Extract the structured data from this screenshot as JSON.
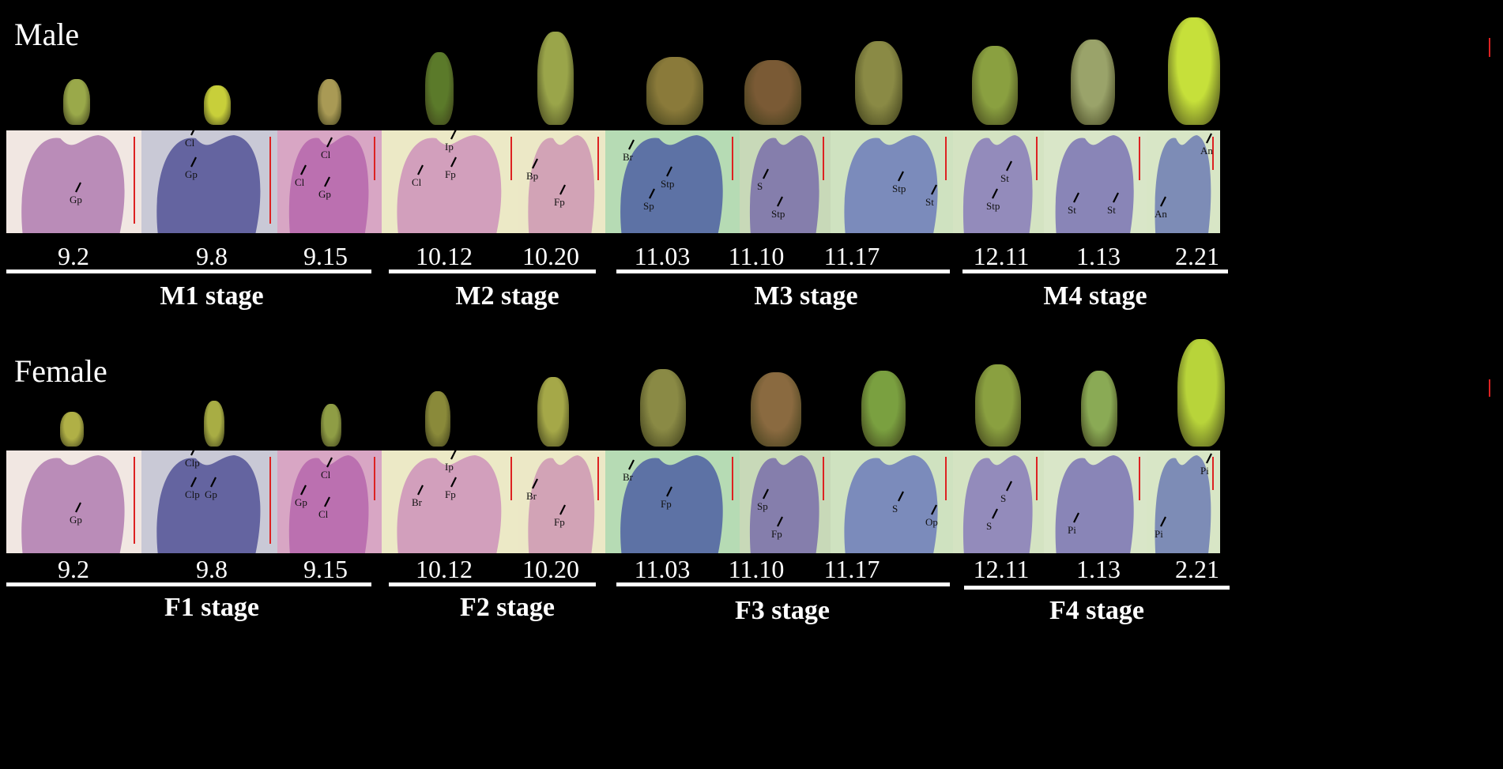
{
  "male": {
    "title": "Male",
    "dates": [
      "9.2",
      "9.8",
      "9.15",
      "10.12",
      "10.20",
      "11.03",
      "11.10",
      "11.17",
      "12.11",
      "1.13",
      "2.21"
    ],
    "stages": [
      "M1 stage",
      "M2 stage",
      "M3 stage",
      "M4 stage"
    ],
    "panel_labels": [
      [
        "Gp"
      ],
      [
        "Cl",
        "Gp"
      ],
      [
        "Cl",
        "Cl",
        "Gp"
      ],
      [
        "Ip",
        "Cl",
        "Fp"
      ],
      [
        "Bp",
        "Fp"
      ],
      [
        "Br",
        "Stp",
        "Sp"
      ],
      [
        "S",
        "Stp"
      ],
      [
        "Stp",
        "St"
      ],
      [
        "St",
        "Stp"
      ],
      [
        "St",
        "St"
      ],
      [
        "An",
        "An"
      ]
    ]
  },
  "female": {
    "title": "Female",
    "dates": [
      "9.2",
      "9.8",
      "9.15",
      "10.12",
      "10.20",
      "11.03",
      "11.10",
      "11.17",
      "12.11",
      "1.13",
      "2.21"
    ],
    "stages": [
      "F1 stage",
      "F2 stage",
      "F3 stage",
      "F4 stage"
    ],
    "panel_labels": [
      [
        "Gp"
      ],
      [
        "Clp",
        "Clp",
        "Gp"
      ],
      [
        "Cl",
        "Gp",
        "Cl"
      ],
      [
        "Ip",
        "Br",
        "Fp"
      ],
      [
        "Br",
        "Fp"
      ],
      [
        "Br",
        "Fp"
      ],
      [
        "Sp",
        "Fp"
      ],
      [
        "S",
        "Op"
      ],
      [
        "S",
        "S"
      ],
      [
        "Pi"
      ],
      [
        "Pi",
        "Pi"
      ]
    ]
  },
  "colors": {
    "background": "#000000",
    "scale_bar": "#dd2222",
    "panel_bg": [
      "#f1e7e2",
      "#c9c9d6",
      "#d8a6c4",
      "#ece9c6",
      "#ece8c6",
      "#b6dbb4",
      "#c8d9b8",
      "#cfe2c0",
      "#d4e3c2",
      "#d9e6c8",
      "#d8e6c6"
    ]
  }
}
